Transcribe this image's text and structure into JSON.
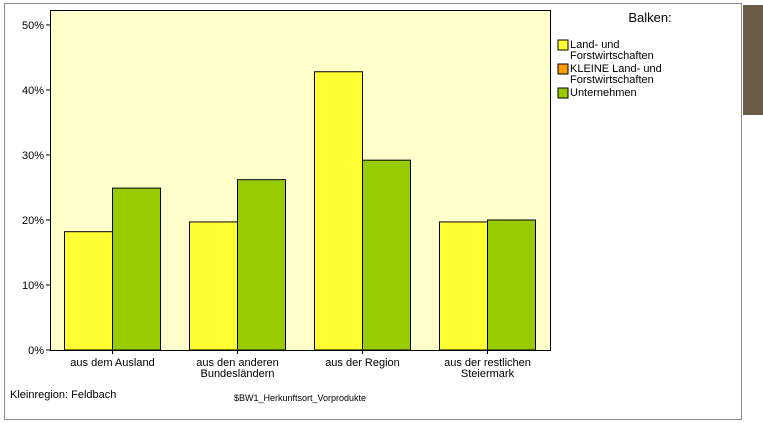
{
  "chart_data": {
    "type": "bar",
    "legend_title": "Balken:",
    "categories": [
      "aus dem Ausland",
      "aus den anderen Bundesländern",
      "aus der Region",
      "aus der restlichen Steiermark"
    ],
    "series": [
      {
        "name": "Land- und Forstwirtschaften",
        "color": "#ffff33",
        "values": [
          18.2,
          19.7,
          42.8,
          19.7
        ]
      },
      {
        "name": "KLEINE Land- und Forstwirtschaften",
        "color": "#ff9900",
        "values": [
          null,
          null,
          null,
          null
        ]
      },
      {
        "name": "Unternehmen",
        "color": "#99cc00",
        "values": [
          24.9,
          26.2,
          29.2,
          20.0
        ]
      }
    ],
    "ylim": [
      0,
      52.3
    ],
    "yticks": [
      {
        "value": 0,
        "label": "0%"
      },
      {
        "value": 10,
        "label": "10%"
      },
      {
        "value": 20,
        "label": "20%"
      },
      {
        "value": 30,
        "label": "30%"
      },
      {
        "value": 40,
        "label": "40%"
      },
      {
        "value": 50,
        "label": "50%"
      }
    ],
    "legend_position": "right",
    "footnote_left": "Kleinregion: Feldbach",
    "footnote_center": "$BW1_Herkunftsort_Vorprodukte"
  }
}
